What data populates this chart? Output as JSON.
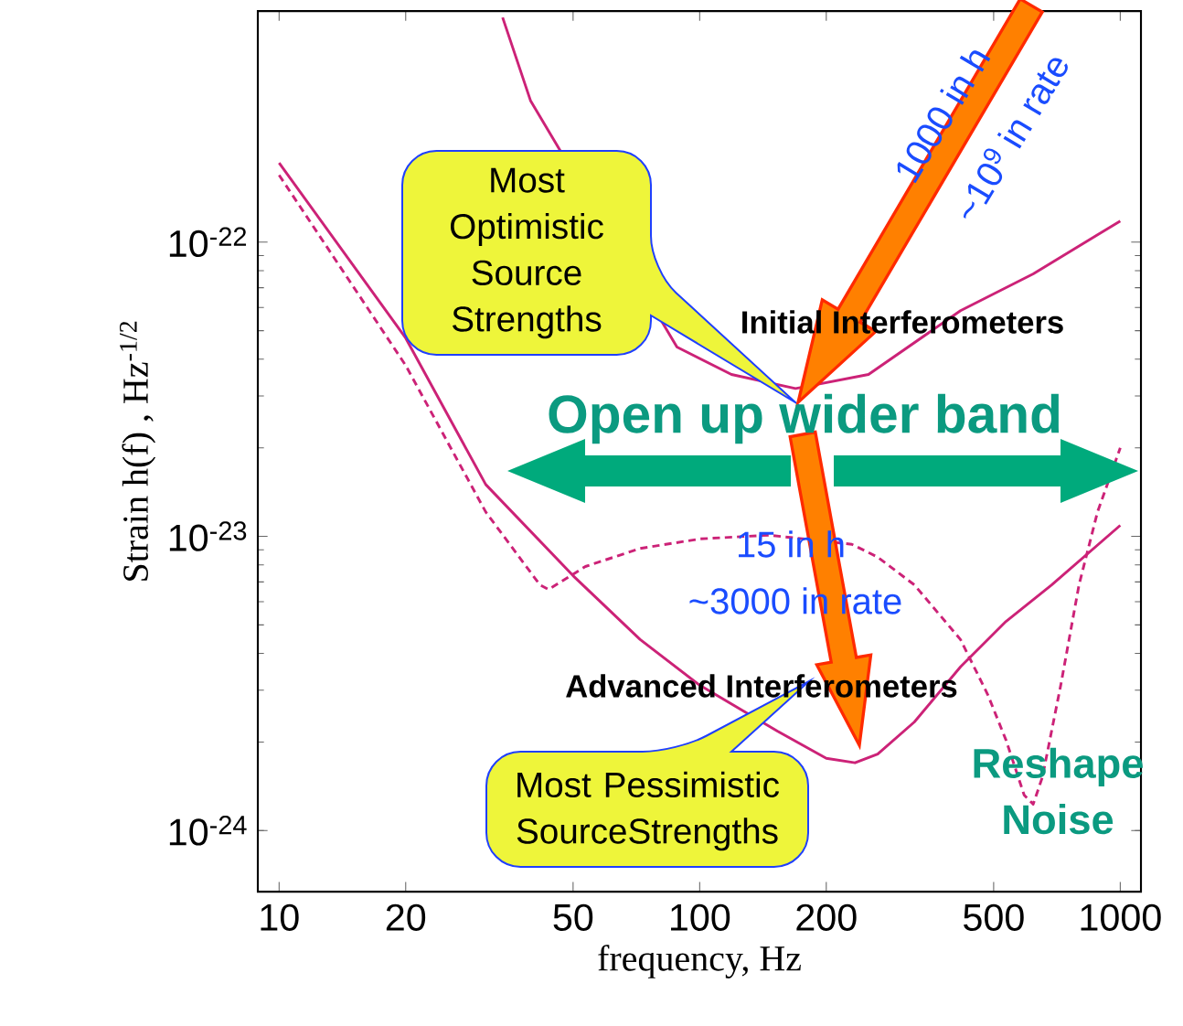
{
  "chart_data": {
    "type": "line",
    "log": "xy",
    "xlabel": "frequency, Hz",
    "ylabel": "Strain h(f) , Hz$^{-1/2}$",
    "xlim": [
      8.9,
      1120
    ],
    "ylim": [
      6.2e-25,
      6.1e-22
    ],
    "xticks": [
      10,
      20,
      50,
      100,
      200,
      500,
      1000
    ],
    "yticks": [
      {
        "value": 1e-24,
        "label": "10$^{-24}$"
      },
      {
        "value": 1e-23,
        "label": "10$^{-23}$"
      },
      {
        "value": 1e-22,
        "label": "10$^{-22}$"
      }
    ],
    "series": [
      {
        "name": "Initial Interferometers",
        "color": "#cc2277",
        "x": [
          34,
          39.6,
          48.4,
          65.3,
          88.3,
          119,
          169,
          252,
          417,
          621,
          1000
        ],
        "values": [
          5.8e-22,
          3.03e-22,
          null,
          null,
          4.4e-23,
          3.55e-23,
          3.18e-23,
          3.55e-23,
          5.85e-23,
          7.8e-23,
          1.18e-22
        ]
      },
      {
        "name": "Advanced Interferometers",
        "color": "#cc2277",
        "x": [
          10,
          20,
          31,
          50,
          72.2,
          100,
          153,
          200,
          234,
          265,
          324,
          417,
          535,
          687,
          1000
        ],
        "values": [
          1.86e-22,
          4.72e-23,
          1.5e-23,
          7.35e-24,
          4.46e-24,
          3.12e-24,
          2.18e-24,
          1.76e-24,
          1.7e-24,
          1.82e-24,
          2.34e-24,
          3.6e-24,
          5.14e-24,
          6.84e-24,
          1.09e-23
        ]
      },
      {
        "color": "#cc2277",
        "line_style": "dashed",
        "x": [
          10,
          20,
          31,
          41.7,
          43.7,
          53.5,
          72.2,
          100,
          146,
          230,
          265,
          324,
          417,
          484,
          535,
          591,
          621,
          653,
          722,
          798,
          883,
          1000
        ],
        "values": [
          1.69e-22,
          3.81e-23,
          1.21e-23,
          6.84e-24,
          6.6e-24,
          7.9e-24,
          9.1e-24,
          9.8e-24,
          1.01e-23,
          9.4e-24,
          8.5e-24,
          6.84e-24,
          4.46e-24,
          2.9e-24,
          2.03e-24,
          1.32e-24,
          1.23e-24,
          1.52e-24,
          3.12e-24,
          6.84e-24,
          1.21e-23,
          2e-23
        ]
      }
    ],
    "annotations": [
      "Most Optimistic Source Strengths",
      "Open up wider band",
      "15 in h",
      "~3000 in rate",
      "Most Pessimistic SourceStrengths",
      "Reshape Noise",
      "1000 in h",
      "~10$^{9}$ in rate"
    ]
  }
}
